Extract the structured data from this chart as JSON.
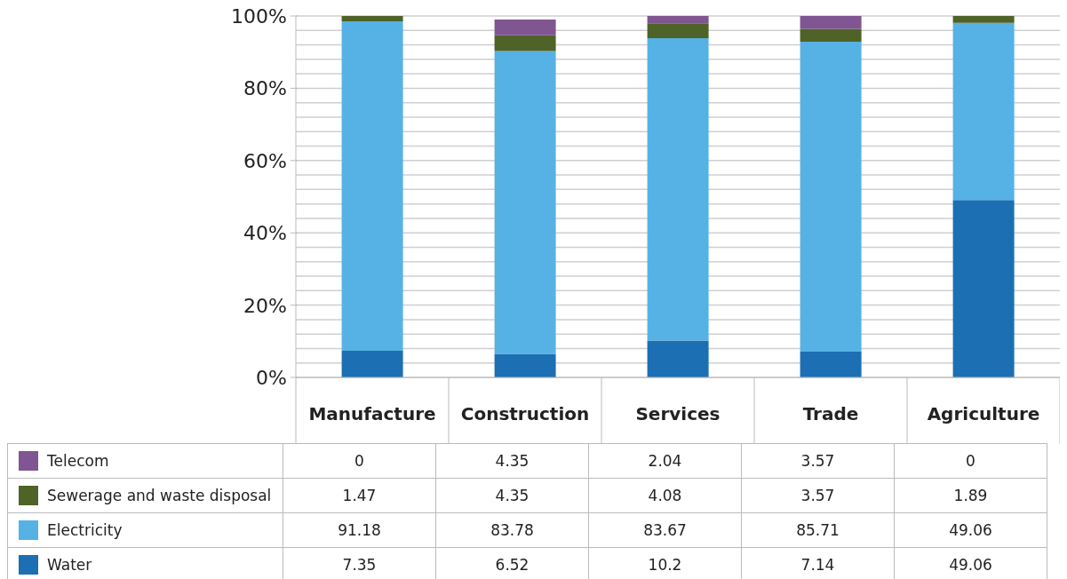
{
  "chart_data": {
    "type": "bar",
    "stacked": true,
    "categories": [
      "Manufacture",
      "Construction",
      "Services",
      "Trade",
      "Agriculture"
    ],
    "series": [
      {
        "name": "Water",
        "color": "#1c6fb3",
        "values": [
          7.35,
          6.52,
          10.2,
          7.14,
          49.06
        ]
      },
      {
        "name": "Electricity",
        "color": "#56b2e4",
        "values": [
          91.18,
          83.78,
          83.67,
          85.71,
          49.06
        ]
      },
      {
        "name": "Sewerage and waste disposal",
        "color": "#4f6228",
        "values": [
          1.47,
          4.35,
          4.08,
          3.57,
          1.89
        ]
      },
      {
        "name": "Telecom",
        "color": "#7f5592",
        "values": [
          0,
          4.35,
          2.04,
          3.57,
          0
        ]
      }
    ],
    "ylim": [
      0,
      100
    ],
    "yticks": [
      {
        "value": 0,
        "label": "0%"
      },
      {
        "value": 4,
        "label": null
      },
      {
        "value": 8,
        "label": null
      },
      {
        "value": 12,
        "label": null
      },
      {
        "value": 16,
        "label": null
      },
      {
        "value": 20,
        "label": "20%"
      },
      {
        "value": 24,
        "label": null
      },
      {
        "value": 28,
        "label": null
      },
      {
        "value": 32,
        "label": null
      },
      {
        "value": 36,
        "label": null
      },
      {
        "value": 40,
        "label": "40%"
      },
      {
        "value": 44,
        "label": null
      },
      {
        "value": 48,
        "label": null
      },
      {
        "value": 52,
        "label": null
      },
      {
        "value": 56,
        "label": null
      },
      {
        "value": 60,
        "label": "60%"
      },
      {
        "value": 64,
        "label": null
      },
      {
        "value": 68,
        "label": null
      },
      {
        "value": 72,
        "label": null
      },
      {
        "value": 76,
        "label": null
      },
      {
        "value": 80,
        "label": "80%"
      },
      {
        "value": 84,
        "label": null
      },
      {
        "value": 88,
        "label": null
      },
      {
        "value": 92,
        "label": null
      },
      {
        "value": 96,
        "label": null
      },
      {
        "value": 100,
        "label": "100%"
      }
    ],
    "grid": "y",
    "legend": "bottom left",
    "data_labels": true
  }
}
